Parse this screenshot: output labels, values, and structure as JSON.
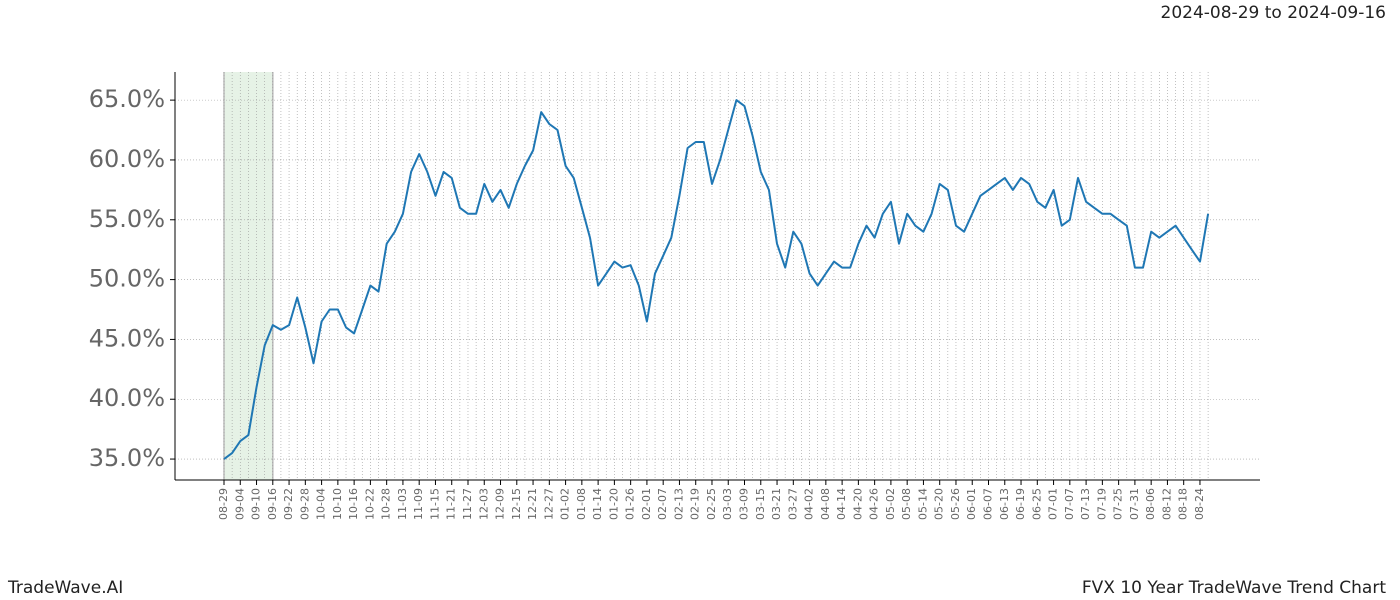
{
  "chart_data": {
    "type": "line",
    "title": "FVX 10 Year TradeWave Trend Chart",
    "subtitle": "2024-08-29 to 2024-09-16",
    "brand": "TradeWave.AI",
    "categories": [
      "08-29",
      null,
      "09-04",
      null,
      "09-10",
      null,
      "09-16",
      null,
      "09-22",
      null,
      "09-28",
      null,
      "10-04",
      null,
      "10-10",
      null,
      "10-16",
      null,
      "10-22",
      null,
      "10-28",
      null,
      "11-03",
      null,
      "11-09",
      null,
      "11-15",
      null,
      "11-21",
      null,
      "11-27",
      null,
      "12-03",
      null,
      "12-09",
      null,
      "12-15",
      null,
      "12-21",
      null,
      "12-27",
      null,
      "01-02",
      null,
      "01-08",
      null,
      "01-14",
      null,
      "01-20",
      null,
      "01-26",
      null,
      "02-01",
      null,
      "02-07",
      null,
      "02-13",
      null,
      "02-19",
      null,
      "02-25",
      null,
      "03-03",
      null,
      "03-09",
      null,
      "03-15",
      null,
      "03-21",
      null,
      "03-27",
      null,
      "04-02",
      null,
      "04-08",
      null,
      "04-14",
      null,
      "04-20",
      null,
      "04-26",
      null,
      "05-02",
      null,
      "05-08",
      null,
      "05-14",
      null,
      "05-20",
      null,
      "05-26",
      null,
      "06-01",
      null,
      "06-07",
      null,
      "06-13",
      null,
      "06-19",
      null,
      "06-25",
      null,
      "07-01",
      null,
      "07-07",
      null,
      "07-13",
      null,
      "07-19",
      null,
      "07-25",
      null,
      "07-31",
      null,
      "08-06",
      null,
      "08-12",
      null,
      "08-18",
      null,
      "08-24",
      null
    ],
    "values": [
      35.0,
      35.5,
      36.5,
      37.0,
      41.0,
      44.5,
      46.2,
      45.8,
      46.2,
      48.5,
      46.0,
      43.0,
      46.5,
      47.5,
      47.5,
      46.0,
      45.5,
      47.5,
      49.5,
      49.0,
      53.0,
      54.0,
      55.5,
      59.0,
      60.5,
      59.0,
      57.0,
      59.0,
      58.5,
      56.0,
      55.5,
      55.5,
      58.0,
      56.5,
      57.5,
      56.0,
      58.0,
      59.5,
      60.8,
      64.0,
      63.0,
      62.5,
      59.5,
      58.5,
      56.0,
      53.5,
      49.5,
      50.5,
      51.5,
      51.0,
      51.2,
      49.5,
      46.5,
      50.5,
      52.0,
      53.5,
      57.0,
      61.0,
      61.5,
      61.5,
      58.0,
      60.0,
      62.5,
      65.0,
      64.5,
      62.0,
      59.0,
      57.5,
      53.0,
      51.0,
      54.0,
      53.0,
      50.5,
      49.5,
      50.5,
      51.5,
      51.0,
      51.0,
      53.0,
      54.5,
      53.5,
      55.5,
      56.5,
      53.0,
      55.5,
      54.5,
      54.0,
      55.5,
      58.0,
      57.5,
      54.5,
      54.0,
      55.5,
      57.0,
      57.5,
      58.0,
      58.5,
      57.5,
      58.5,
      58.0,
      56.5,
      56.0,
      57.5,
      54.5,
      55.0,
      58.5,
      56.5,
      56.0,
      55.5,
      55.5,
      55.0,
      54.5,
      51.0,
      51.0,
      54.0,
      53.5,
      54.0,
      54.5,
      53.5,
      52.5,
      51.5,
      55.5
    ],
    "color": "#1f77b4",
    "ylim": [
      33.25,
      67.35
    ],
    "yticks": [
      {
        "value": 35,
        "label": "35.0%"
      },
      {
        "value": 40,
        "label": "40.0%"
      },
      {
        "value": 45,
        "label": "45.0%"
      },
      {
        "value": 50,
        "label": "50.0%"
      },
      {
        "value": 55,
        "label": "55.0%"
      },
      {
        "value": 60,
        "label": "60.0%"
      },
      {
        "value": 65,
        "label": "65.0%"
      }
    ],
    "grid": true,
    "shade": {
      "start": "08-29",
      "end": "09-16",
      "color": "#e6f2e6"
    }
  }
}
